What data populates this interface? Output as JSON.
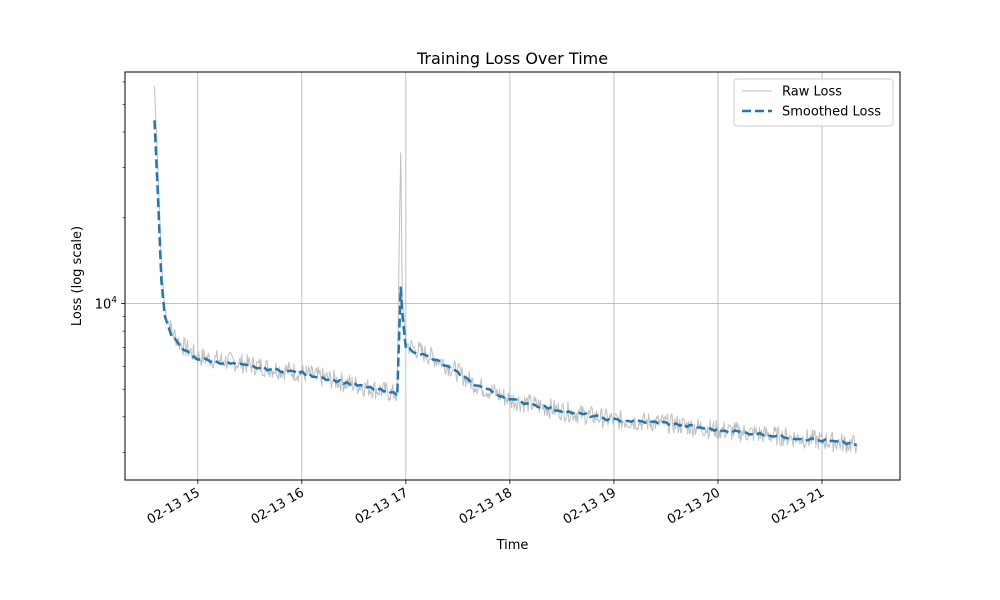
{
  "chart_data": {
    "type": "line",
    "title": "Training Loss Over Time",
    "xlabel": "Time",
    "ylabel": "Loss (log scale)",
    "y_scale": "log",
    "grid": true,
    "legend_position": "top-right",
    "x_tick_labels": [
      "02-13 15",
      "02-13 16",
      "02-13 17",
      "02-13 18",
      "02-13 19",
      "02-13 20",
      "02-13 21"
    ],
    "x_ticks": [
      "2024-02-13 15:00",
      "2024-02-13 16:00",
      "2024-02-13 17:00",
      "2024-02-13 18:00",
      "2024-02-13 19:00",
      "2024-02-13 20:00",
      "2024-02-13 21:00"
    ],
    "xlim": [
      "2024-02-13 14:18",
      "2024-02-13 21:45"
    ],
    "ylim": [
      2400,
      65000
    ],
    "y_major_ticks": [
      {
        "value": 10000,
        "base": "10",
        "exp": "4"
      }
    ],
    "series": [
      {
        "name": "Raw Loss",
        "color": "#bfbfbf",
        "style": "solid",
        "x": [
          "2024-02-13 14:35",
          "2024-02-13 14:37",
          "2024-02-13 14:39",
          "2024-02-13 14:41",
          "2024-02-13 14:45",
          "2024-02-13 14:50",
          "2024-02-13 15:00",
          "2024-02-13 15:15",
          "2024-02-13 15:30",
          "2024-02-13 16:00",
          "2024-02-13 16:30",
          "2024-02-13 16:55",
          "2024-02-13 16:57",
          "2024-02-13 16:58",
          "2024-02-13 17:00",
          "2024-02-13 17:10",
          "2024-02-13 17:20",
          "2024-02-13 17:40",
          "2024-02-13 18:00",
          "2024-02-13 18:30",
          "2024-02-13 19:00",
          "2024-02-13 19:30",
          "2024-02-13 20:00",
          "2024-02-13 20:30",
          "2024-02-13 21:00",
          "2024-02-13 21:20"
        ],
        "values": [
          58000,
          30000,
          14000,
          9500,
          8000,
          7200,
          6500,
          6300,
          6100,
          5700,
          5200,
          4800,
          35000,
          10000,
          7200,
          6700,
          6300,
          5200,
          4600,
          4200,
          3900,
          3800,
          3600,
          3450,
          3300,
          3200
        ]
      },
      {
        "name": "Smoothed Loss",
        "color": "#1f77b4",
        "style": "dashed",
        "x": [
          "2024-02-13 14:35",
          "2024-02-13 14:37",
          "2024-02-13 14:39",
          "2024-02-13 14:41",
          "2024-02-13 14:45",
          "2024-02-13 14:50",
          "2024-02-13 15:00",
          "2024-02-13 15:15",
          "2024-02-13 15:30",
          "2024-02-13 16:00",
          "2024-02-13 16:30",
          "2024-02-13 16:55",
          "2024-02-13 16:57",
          "2024-02-13 16:58",
          "2024-02-13 17:00",
          "2024-02-13 17:10",
          "2024-02-13 17:20",
          "2024-02-13 17:40",
          "2024-02-13 18:00",
          "2024-02-13 18:30",
          "2024-02-13 19:00",
          "2024-02-13 19:30",
          "2024-02-13 20:00",
          "2024-02-13 20:30",
          "2024-02-13 21:00",
          "2024-02-13 21:20"
        ],
        "values": [
          44000,
          24000,
          12000,
          9000,
          7700,
          7000,
          6400,
          6200,
          6000,
          5700,
          5200,
          4800,
          11500,
          9000,
          7000,
          6600,
          6200,
          5200,
          4600,
          4200,
          3900,
          3800,
          3600,
          3450,
          3300,
          3200
        ]
      }
    ]
  }
}
